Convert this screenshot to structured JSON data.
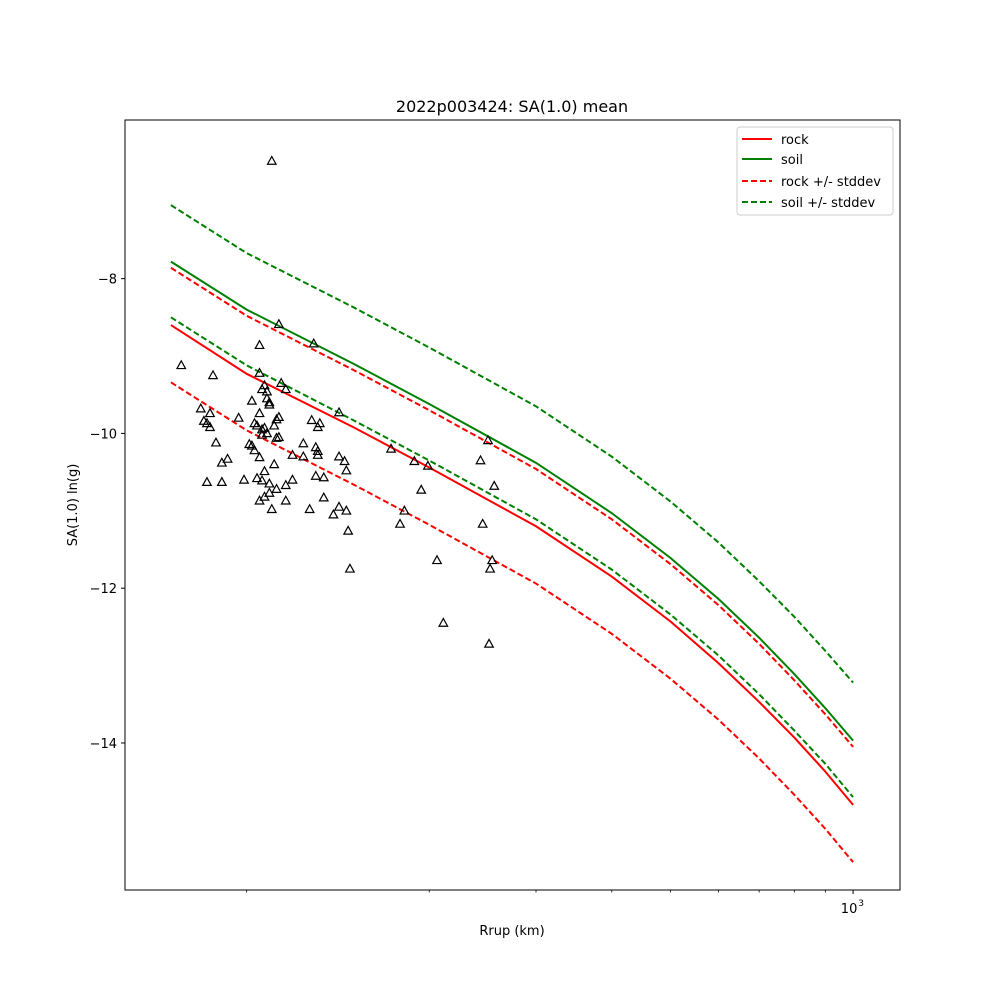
{
  "chart_data": {
    "type": "line",
    "title": "2022p003424: SA(1.0) mean",
    "xlabel": "Rrup (km)",
    "ylabel": "SA(1.0) ln(g)",
    "x_scale": "log",
    "xlim": [
      63,
      1195
    ],
    "ylim": [
      -15.9,
      -5.95
    ],
    "y_ticks": [
      -8,
      -10,
      -12,
      -14
    ],
    "y_tick_labels": [
      "−8",
      "−10",
      "−12",
      "−14"
    ],
    "x_major_ticks": [
      1000
    ],
    "x_major_tick_labels": [
      "10"
    ],
    "x_major_tick_exponent": "3",
    "x_minor_ticks": [
      100,
      200,
      300,
      400,
      500,
      600,
      700,
      800,
      900
    ],
    "grid": false,
    "legend_position": "top-right",
    "series": [
      {
        "name": "rock",
        "color": "#ff0000",
        "style": "solid",
        "x": [
          75,
          100,
          150,
          200,
          300,
          400,
          500,
          600,
          700,
          800,
          900,
          1000
        ],
        "y": [
          -8.6,
          -9.23,
          -9.92,
          -10.44,
          -11.2,
          -11.85,
          -12.43,
          -12.97,
          -13.47,
          -13.93,
          -14.37,
          -14.8
        ]
      },
      {
        "name": "soil",
        "color": "#008000",
        "style": "solid",
        "x": [
          75,
          100,
          150,
          200,
          300,
          400,
          500,
          600,
          700,
          800,
          900,
          1000
        ],
        "y": [
          -7.78,
          -8.4,
          -9.1,
          -9.62,
          -10.38,
          -11.03,
          -11.61,
          -12.14,
          -12.64,
          -13.11,
          -13.55,
          -13.97
        ]
      },
      {
        "name": "rock +/- stddev",
        "color": "#ff0000",
        "style": "dashed",
        "x": [
          75,
          100,
          150,
          200,
          300,
          400,
          500,
          600,
          700,
          800,
          900,
          1000
        ],
        "y": [
          -7.86,
          -8.48,
          -9.18,
          -9.7,
          -10.46,
          -11.11,
          -11.69,
          -12.22,
          -12.72,
          -13.19,
          -13.63,
          -14.05
        ]
      },
      {
        "name": "",
        "color": "#ff0000",
        "style": "dashed",
        "x": [
          75,
          100,
          150,
          200,
          300,
          400,
          500,
          600,
          700,
          800,
          900,
          1000
        ],
        "y": [
          -9.34,
          -9.96,
          -10.66,
          -11.18,
          -11.94,
          -12.59,
          -13.17,
          -13.7,
          -14.2,
          -14.67,
          -15.11,
          -15.54
        ]
      },
      {
        "name": "soil +/- stddev",
        "color": "#008000",
        "style": "dashed",
        "x": [
          75,
          100,
          150,
          200,
          300,
          400,
          500,
          600,
          700,
          800,
          900,
          1000
        ],
        "y": [
          -7.05,
          -7.67,
          -8.37,
          -8.89,
          -9.65,
          -10.3,
          -10.88,
          -11.41,
          -11.91,
          -12.37,
          -12.81,
          -13.22
        ]
      },
      {
        "name": "",
        "color": "#008000",
        "style": "dashed",
        "x": [
          75,
          100,
          150,
          200,
          300,
          400,
          500,
          600,
          700,
          800,
          900,
          1000
        ],
        "y": [
          -8.5,
          -9.12,
          -9.83,
          -10.35,
          -11.11,
          -11.76,
          -12.34,
          -12.87,
          -13.37,
          -13.84,
          -14.27,
          -14.7
        ]
      }
    ],
    "observations": {
      "marker": "open-triangle",
      "color": "#000000",
      "points": [
        [
          78,
          -9.12
        ],
        [
          84,
          -9.68
        ],
        [
          85,
          -9.84
        ],
        [
          86,
          -9.87
        ],
        [
          86,
          -10.63
        ],
        [
          87,
          -9.74
        ],
        [
          87,
          -9.92
        ],
        [
          88,
          -9.25
        ],
        [
          89,
          -10.12
        ],
        [
          91,
          -10.38
        ],
        [
          91,
          -10.63
        ],
        [
          93,
          -10.33
        ],
        [
          97,
          -9.8
        ],
        [
          99,
          -10.6
        ],
        [
          101,
          -10.14
        ],
        [
          102,
          -9.58
        ],
        [
          102,
          -10.16
        ],
        [
          103,
          -9.87
        ],
        [
          103,
          -10.22
        ],
        [
          104,
          -10.58
        ],
        [
          104,
          -9.9
        ],
        [
          105,
          -8.86
        ],
        [
          105,
          -9.22
        ],
        [
          105,
          -9.74
        ],
        [
          105,
          -10.31
        ],
        [
          105,
          -10.87
        ],
        [
          106,
          -9.43
        ],
        [
          106,
          -9.95
        ],
        [
          106,
          -10.02
        ],
        [
          106,
          -10.61
        ],
        [
          107,
          -9.38
        ],
        [
          107,
          -9.93
        ],
        [
          107,
          -10.49
        ],
        [
          107,
          -10.82
        ],
        [
          108,
          -9.46
        ],
        [
          108,
          -9.55
        ],
        [
          108,
          -10.0
        ],
        [
          109,
          -9.6
        ],
        [
          109,
          -9.63
        ],
        [
          109,
          -10.65
        ],
        [
          109,
          -10.77
        ],
        [
          110,
          -6.48
        ],
        [
          110,
          -10.98
        ],
        [
          111,
          -10.4
        ],
        [
          111,
          -9.9
        ],
        [
          112,
          -9.82
        ],
        [
          112,
          -10.06
        ],
        [
          112,
          -10.72
        ],
        [
          113,
          -8.59
        ],
        [
          113,
          -9.79
        ],
        [
          113,
          -10.05
        ],
        [
          114,
          -9.35
        ],
        [
          116,
          -9.43
        ],
        [
          116,
          -10.67
        ],
        [
          116,
          -10.87
        ],
        [
          119,
          -10.28
        ],
        [
          119,
          -10.6
        ],
        [
          124,
          -10.13
        ],
        [
          124,
          -10.3
        ],
        [
          127,
          -10.98
        ],
        [
          128,
          -9.83
        ],
        [
          129,
          -8.84
        ],
        [
          130,
          -10.18
        ],
        [
          130,
          -10.55
        ],
        [
          131,
          -9.92
        ],
        [
          131,
          -10.23
        ],
        [
          131,
          -10.28
        ],
        [
          132,
          -9.87
        ],
        [
          134,
          -10.83
        ],
        [
          134,
          -10.57
        ],
        [
          139,
          -11.05
        ],
        [
          142,
          -9.73
        ],
        [
          142,
          -10.3
        ],
        [
          142,
          -10.95
        ],
        [
          145,
          -10.36
        ],
        [
          146,
          -10.48
        ],
        [
          146,
          -11.0
        ],
        [
          147,
          -11.26
        ],
        [
          148,
          -11.75
        ],
        [
          173,
          -10.2
        ],
        [
          179,
          -11.17
        ],
        [
          182,
          -11.0
        ],
        [
          189,
          -10.36
        ],
        [
          194,
          -10.73
        ],
        [
          199,
          -10.42
        ],
        [
          206,
          -11.64
        ],
        [
          211,
          -12.45
        ],
        [
          243,
          -10.35
        ],
        [
          245,
          -11.17
        ],
        [
          250,
          -10.09
        ],
        [
          251,
          -12.72
        ],
        [
          252,
          -11.75
        ],
        [
          254,
          -11.64
        ],
        [
          256,
          -10.68
        ]
      ]
    }
  }
}
